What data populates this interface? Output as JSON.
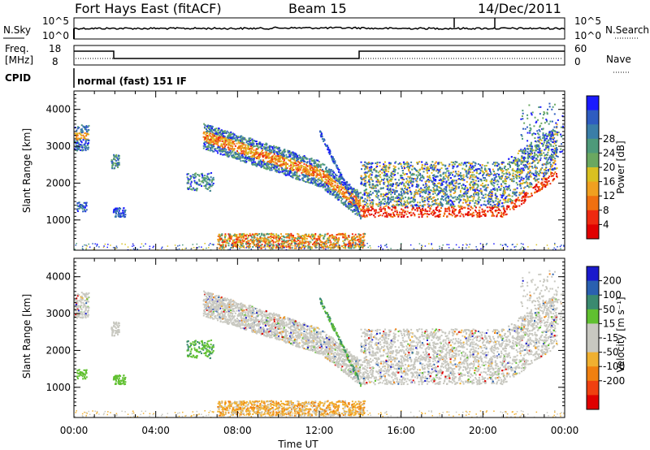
{
  "header": {
    "station": "Fort Hays East (fitACF)",
    "beam": "Beam 15",
    "date": "14/Dec/2011"
  },
  "status_panel": {
    "nsky_label": "N.Sky",
    "nsearch_label": "N.Search",
    "noise_tick_top": "10^5",
    "noise_tick_bottom": "10^0",
    "freq_label": "Freq.",
    "freq_unit": "[MHz]",
    "freq_tick_top": "18",
    "freq_tick_bottom": "8",
    "nave_label": "Nave",
    "nave_tick_top": "60",
    "nave_tick_bottom": "0",
    "cpid_label": "CPID",
    "cpid_value": "normal (fast) 151 IF"
  },
  "chart_data": [
    {
      "type": "heatmap",
      "name": "power",
      "ylabel": "Slant Range [km]",
      "ylim": [
        180,
        4500
      ],
      "yticks": [
        1000,
        2000,
        3000,
        4000
      ],
      "xlabel": "Time UT",
      "xlim_hours": [
        0,
        24
      ],
      "xticks": [
        "00:00",
        "04:00",
        "08:00",
        "12:00",
        "16:00",
        "20:00",
        "00:00"
      ],
      "colorbar": {
        "label": "Power [dB]",
        "ticks": [
          "4",
          "8",
          "12",
          "16",
          "20",
          "24",
          "28"
        ],
        "colors": [
          "#1a1aff",
          "#2e5cc0",
          "#3a7ea8",
          "#4e9a7a",
          "#6aa860",
          "#d9c020",
          "#f0a020",
          "#f07010",
          "#ee2a10",
          "#e00000"
        ]
      }
    },
    {
      "type": "heatmap",
      "name": "velocity",
      "ylabel": "Slant Range [km]",
      "ylim": [
        180,
        4500
      ],
      "yticks": [
        1000,
        2000,
        3000,
        4000
      ],
      "colorbar": {
        "label": "Velocity [m s⁻¹]",
        "ticks": [
          "200",
          "100",
          "50",
          "15",
          "-15",
          "-50",
          "-100",
          "-200"
        ],
        "colors": [
          "#1a1acc",
          "#2a60b0",
          "#3a8a70",
          "#60c030",
          "#c8c8c0",
          "#c8c8c0",
          "#f0b030",
          "#f08010",
          "#f04010",
          "#e00000"
        ]
      }
    }
  ]
}
